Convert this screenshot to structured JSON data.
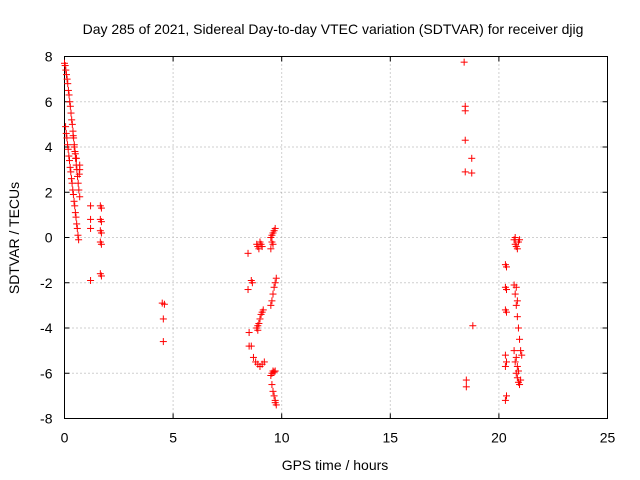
{
  "chart_data": {
    "type": "scatter",
    "title": "Day 285 of 2021, Sidereal Day-to-day VTEC variation (SDTVAR) for receiver djig",
    "xlabel": "GPS time / hours",
    "ylabel": "SDTVAR / TECUs",
    "xlim": [
      0,
      25
    ],
    "ylim": [
      -8,
      8
    ],
    "xticks": [
      "0",
      "5",
      "10",
      "15",
      "20",
      "25"
    ],
    "yticks": [
      "-8",
      "-6",
      "-4",
      "-2",
      "0",
      "2",
      "4",
      "6",
      "8"
    ],
    "grid": true,
    "marker": "+",
    "color": "#ff0000",
    "series": [
      {
        "name": "SDTVAR",
        "points": [
          [
            0.0,
            7.7
          ],
          [
            0.03,
            7.6
          ],
          [
            0.06,
            7.4
          ],
          [
            0.09,
            7.2
          ],
          [
            0.12,
            7.0
          ],
          [
            0.15,
            6.8
          ],
          [
            0.18,
            6.5
          ],
          [
            0.21,
            6.3
          ],
          [
            0.24,
            6.0
          ],
          [
            0.27,
            5.8
          ],
          [
            0.3,
            5.5
          ],
          [
            0.33,
            5.2
          ],
          [
            0.36,
            5.0
          ],
          [
            0.39,
            4.7
          ],
          [
            0.42,
            4.4
          ],
          [
            0.45,
            4.1
          ],
          [
            0.48,
            3.8
          ],
          [
            0.51,
            3.5
          ],
          [
            0.54,
            3.2
          ],
          [
            0.57,
            3.0
          ],
          [
            0.6,
            2.7
          ],
          [
            0.63,
            2.4
          ],
          [
            0.66,
            2.1
          ],
          [
            0.7,
            1.8
          ],
          [
            0.05,
            4.9
          ],
          [
            0.08,
            4.6
          ],
          [
            0.11,
            4.4
          ],
          [
            0.14,
            4.1
          ],
          [
            0.17,
            3.9
          ],
          [
            0.2,
            3.6
          ],
          [
            0.23,
            3.4
          ],
          [
            0.26,
            3.1
          ],
          [
            0.29,
            2.9
          ],
          [
            0.32,
            2.6
          ],
          [
            0.35,
            2.4
          ],
          [
            0.38,
            2.1
          ],
          [
            0.41,
            1.9
          ],
          [
            0.44,
            1.6
          ],
          [
            0.47,
            1.4
          ],
          [
            0.5,
            1.1
          ],
          [
            0.53,
            0.9
          ],
          [
            0.56,
            0.6
          ],
          [
            0.59,
            0.4
          ],
          [
            0.62,
            0.1
          ],
          [
            0.65,
            -0.1
          ],
          [
            0.7,
            3.2
          ],
          [
            0.7,
            3.0
          ],
          [
            0.68,
            2.8
          ],
          [
            0.4,
            4.5
          ],
          [
            0.45,
            4.0
          ],
          [
            0.5,
            3.7
          ],
          [
            0.55,
            3.5
          ],
          [
            1.2,
            1.4
          ],
          [
            1.2,
            0.8
          ],
          [
            1.2,
            0.4
          ],
          [
            1.2,
            -1.9
          ],
          [
            1.65,
            1.4
          ],
          [
            1.7,
            1.3
          ],
          [
            1.65,
            0.8
          ],
          [
            1.7,
            0.7
          ],
          [
            1.65,
            0.3
          ],
          [
            1.7,
            0.2
          ],
          [
            1.65,
            -0.2
          ],
          [
            1.7,
            -0.3
          ],
          [
            1.65,
            -1.6
          ],
          [
            1.7,
            -1.7
          ],
          [
            4.5,
            -2.9
          ],
          [
            4.6,
            -2.95
          ],
          [
            4.55,
            -3.6
          ],
          [
            4.55,
            -4.6
          ],
          [
            8.45,
            -0.7
          ],
          [
            8.45,
            -2.3
          ],
          [
            8.5,
            -4.2
          ],
          [
            8.5,
            -4.8
          ],
          [
            8.6,
            -1.9
          ],
          [
            8.65,
            -2.0
          ],
          [
            8.6,
            -4.8
          ],
          [
            8.7,
            -5.3
          ],
          [
            8.8,
            -5.5
          ],
          [
            8.9,
            -5.6
          ],
          [
            9.0,
            -5.7
          ],
          [
            9.1,
            -5.6
          ],
          [
            9.2,
            -5.5
          ],
          [
            8.85,
            -0.3
          ],
          [
            8.9,
            -0.4
          ],
          [
            8.95,
            -0.5
          ],
          [
            9.0,
            -0.2
          ],
          [
            9.05,
            -0.3
          ],
          [
            9.1,
            -0.4
          ],
          [
            8.85,
            -4.0
          ],
          [
            8.9,
            -3.9
          ],
          [
            8.95,
            -3.8
          ],
          [
            9.0,
            -3.6
          ],
          [
            9.05,
            -3.4
          ],
          [
            9.1,
            -3.3
          ],
          [
            9.15,
            -3.2
          ],
          [
            8.9,
            -4.1
          ],
          [
            9.5,
            0.0
          ],
          [
            9.55,
            0.1
          ],
          [
            9.6,
            0.2
          ],
          [
            9.65,
            0.3
          ],
          [
            9.7,
            0.4
          ],
          [
            9.55,
            -0.2
          ],
          [
            9.6,
            -0.3
          ],
          [
            9.5,
            -0.5
          ],
          [
            9.5,
            -3.0
          ],
          [
            9.55,
            -2.8
          ],
          [
            9.6,
            -2.5
          ],
          [
            9.65,
            -2.2
          ],
          [
            9.7,
            -2.0
          ],
          [
            9.75,
            -1.8
          ],
          [
            9.5,
            -6.1
          ],
          [
            9.55,
            -6.0
          ],
          [
            9.6,
            -5.9
          ],
          [
            9.65,
            -5.95
          ],
          [
            9.7,
            -5.9
          ],
          [
            9.55,
            -6.5
          ],
          [
            9.6,
            -6.8
          ],
          [
            9.65,
            -7.0
          ],
          [
            9.7,
            -7.2
          ],
          [
            9.75,
            -7.4
          ],
          [
            9.7,
            -7.3
          ],
          [
            18.4,
            7.75
          ],
          [
            18.45,
            5.8
          ],
          [
            18.45,
            5.6
          ],
          [
            18.45,
            4.3
          ],
          [
            18.45,
            2.9
          ],
          [
            18.5,
            -6.3
          ],
          [
            18.5,
            -6.6
          ],
          [
            18.75,
            3.5
          ],
          [
            18.75,
            2.85
          ],
          [
            18.8,
            -3.9
          ],
          [
            20.3,
            -1.2
          ],
          [
            20.35,
            -1.3
          ],
          [
            20.3,
            -2.2
          ],
          [
            20.35,
            -2.3
          ],
          [
            20.3,
            -3.2
          ],
          [
            20.35,
            -3.3
          ],
          [
            20.3,
            -5.2
          ],
          [
            20.35,
            -5.5
          ],
          [
            20.3,
            -5.7
          ],
          [
            20.35,
            -7.0
          ],
          [
            20.3,
            -7.2
          ],
          [
            20.7,
            -0.1
          ],
          [
            20.75,
            -0.3
          ],
          [
            20.8,
            -0.4
          ],
          [
            20.85,
            -0.5
          ],
          [
            20.9,
            -0.2
          ],
          [
            20.95,
            -0.1
          ],
          [
            20.75,
            0.0
          ],
          [
            20.7,
            -2.1
          ],
          [
            20.75,
            -2.5
          ],
          [
            20.8,
            -3.0
          ],
          [
            20.85,
            -3.5
          ],
          [
            20.9,
            -4.0
          ],
          [
            20.95,
            -4.5
          ],
          [
            21.0,
            -5.0
          ],
          [
            21.05,
            -5.2
          ],
          [
            20.8,
            -2.2
          ],
          [
            20.85,
            -2.8
          ],
          [
            20.7,
            -5.0
          ],
          [
            20.75,
            -5.5
          ],
          [
            20.8,
            -6.0
          ],
          [
            20.85,
            -6.2
          ],
          [
            20.9,
            -6.4
          ],
          [
            20.95,
            -6.5
          ],
          [
            21.0,
            -6.3
          ],
          [
            20.8,
            -5.3
          ],
          [
            20.85,
            -5.7
          ],
          [
            20.9,
            -5.9
          ]
        ]
      }
    ]
  }
}
